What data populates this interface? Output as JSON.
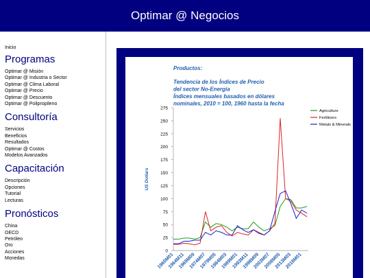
{
  "header": {
    "title": "Optimar @ Negocios"
  },
  "nav": {
    "home": "Inicio",
    "sections": [
      {
        "title": "Programas",
        "items": [
          "Optimar @ Misión",
          "Optimar @ Industria o Sector",
          "Optimar @ Clima Laboral",
          "Optimar @ Precio",
          "Optimar @ Descuento",
          "Optimar @ Polipropileno"
        ]
      },
      {
        "title": "Consultoría",
        "items": [
          "Servicios",
          "Beneficios",
          "Resultados",
          "Optimar @ Costos",
          "Modelos Avanzados"
        ]
      },
      {
        "title": "Capacitación",
        "items": [
          "Descripción",
          "Opciones",
          "Tutorial",
          "Lecturas"
        ]
      },
      {
        "title": "Pronósticos",
        "items": [
          "China",
          "OECD",
          "Petróleo",
          "Oro",
          "Acciones",
          "Monedas"
        ]
      }
    ]
  },
  "chart_data": {
    "type": "line",
    "title": "Productos:",
    "subtitle": [
      "Tendencia de los Índices de Precio",
      "del sector No-Energía",
      "Índices mensuales basados en dólares",
      "nominales, 2010 = 100, 1960 hasta la fecha"
    ],
    "y_label": "US Dollars",
    "categories": [
      "1960M01",
      null,
      "1964M11",
      null,
      "1969M09",
      null,
      "1974M07",
      null,
      "1979M05",
      null,
      "1984M03",
      null,
      "1989M01",
      null,
      "1993M11",
      null,
      "1998M09",
      null,
      "2003M07",
      null,
      "2008M05",
      null,
      "2013M03",
      null,
      "2018M01",
      null
    ],
    "series": [
      {
        "name": "Agriculture",
        "color": "#1a9a1a",
        "values": [
          22,
          22,
          24,
          24,
          22,
          25,
          55,
          45,
          52,
          50,
          45,
          38,
          45,
          42,
          42,
          55,
          45,
          38,
          42,
          48,
          85,
          100,
          98,
          82,
          82,
          85
        ]
      },
      {
        "name": "Fertilizers",
        "color": "#e02020",
        "values": [
          12,
          12,
          14,
          13,
          11,
          14,
          75,
          38,
          45,
          48,
          35,
          28,
          35,
          32,
          30,
          40,
          35,
          30,
          38,
          52,
          255,
          100,
          95,
          78,
          72,
          65
        ]
      },
      {
        "name": "Metals & Minerals",
        "color": "#1a1ad0",
        "values": [
          13,
          13,
          18,
          18,
          20,
          20,
          35,
          30,
          38,
          35,
          30,
          30,
          48,
          40,
          35,
          40,
          33,
          30,
          38,
          75,
          110,
          115,
          90,
          62,
          78,
          72
        ]
      }
    ],
    "ylim": [
      0,
      275
    ],
    "yticks": [
      0,
      25,
      50,
      75,
      100,
      125,
      150,
      175,
      200,
      225,
      250,
      275
    ],
    "grid": false,
    "legend": "right"
  }
}
